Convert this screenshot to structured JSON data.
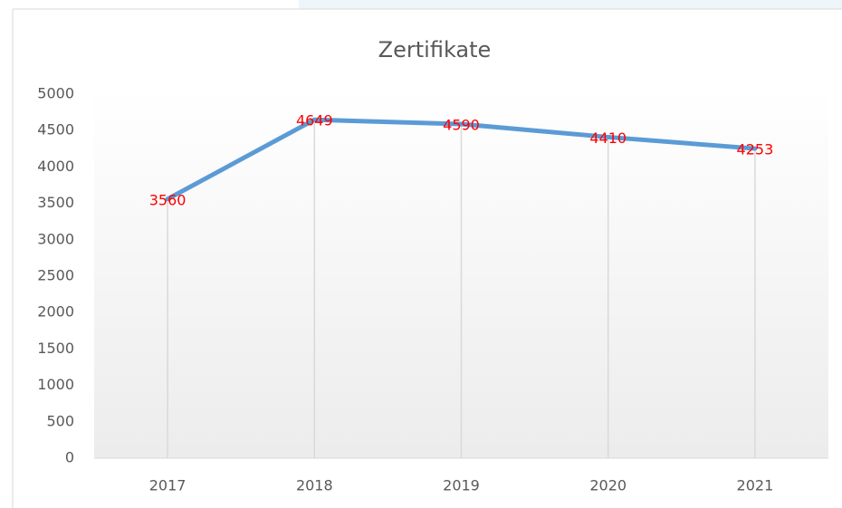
{
  "chart_data": {
    "type": "line",
    "title": "Zertifikate",
    "categories": [
      "2017",
      "2018",
      "2019",
      "2020",
      "2021"
    ],
    "series": [
      {
        "name": "Zertifikate",
        "color": "#5b9bd5",
        "values": [
          3560,
          4649,
          4590,
          4410,
          4253
        ]
      }
    ],
    "label_color": "#ff0000",
    "ylim": [
      0,
      5000
    ],
    "yticks": [
      0,
      500,
      1000,
      1500,
      2000,
      2500,
      3000,
      3500,
      4000,
      4500,
      5000
    ],
    "drop_lines": true
  }
}
